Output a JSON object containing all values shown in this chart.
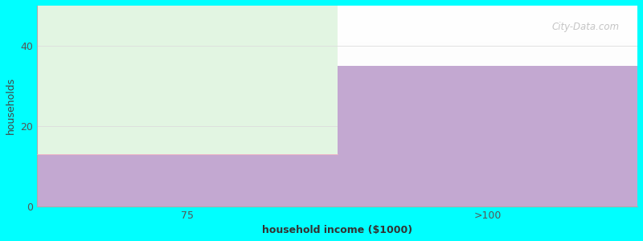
{
  "xlabel": "household income ($1000)",
  "ylabel": "households",
  "background_color": "#00FFFF",
  "plot_bg_top": "#F8FFF8",
  "plot_bg_bottom": "#FFFFFF",
  "bar_categories": [
    "75",
    ">100"
  ],
  "bar_values": [
    13,
    35
  ],
  "bar_color": "#C3A8D1",
  "green_color": "#E2F5E2",
  "ylim": [
    0,
    50
  ],
  "yticks": [
    0,
    20,
    40
  ],
  "title_fontsize": 12,
  "subtitle_fontsize": 10,
  "subtitle_color": "#00AAAA",
  "axis_label_fontsize": 9,
  "tick_fontsize": 9,
  "watermark": "City-Data.com"
}
